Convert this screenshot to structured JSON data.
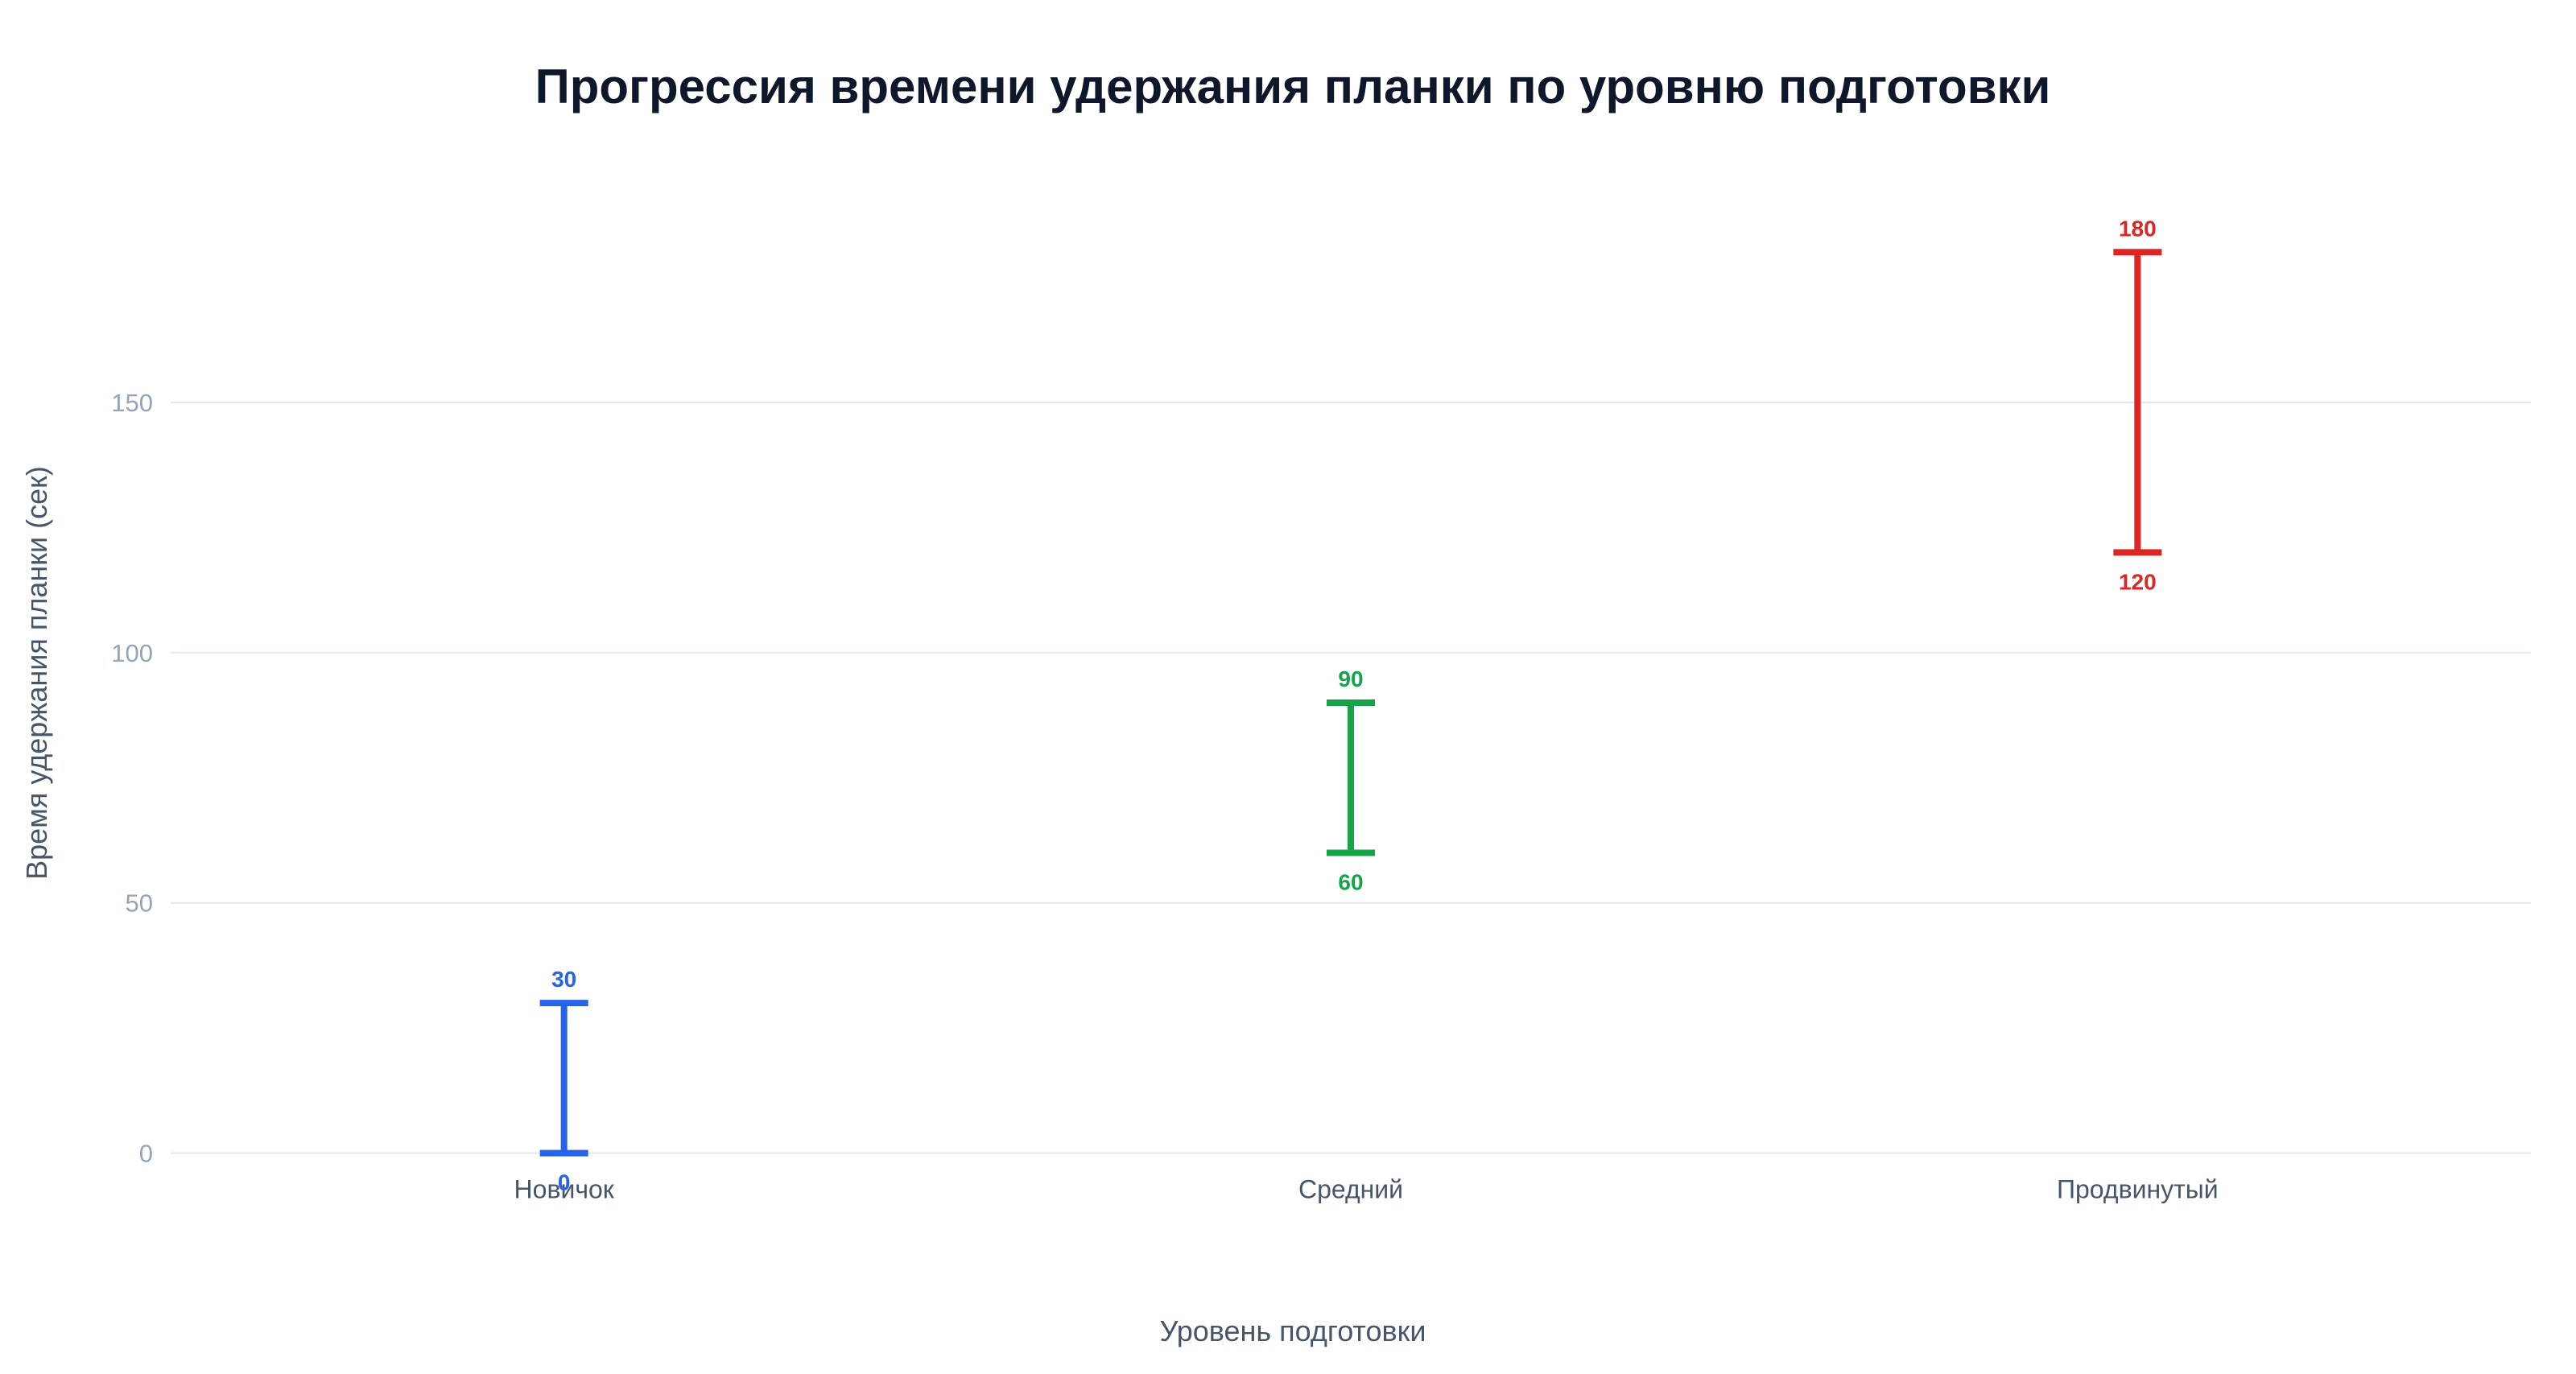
{
  "chart_data": {
    "type": "range",
    "title": "Прогрессия времени удержания планки по уровню подготовки",
    "xlabel": "Уровень подготовки",
    "ylabel": "Время удержания планки (сек)",
    "categories": [
      "Новичок",
      "Средний",
      "Продвинутый"
    ],
    "ranges": [
      {
        "category": "Новичок",
        "low": 0,
        "high": 30,
        "color": "#2563eb"
      },
      {
        "category": "Средний",
        "low": 60,
        "high": 90,
        "color": "#16a34a"
      },
      {
        "category": "Продвинутый",
        "low": 120,
        "high": 180,
        "color": "#dc2626"
      }
    ],
    "ylim": [
      -6,
      195
    ],
    "yticks": [
      0,
      50,
      100,
      150
    ],
    "grid": true,
    "legend": "none"
  }
}
